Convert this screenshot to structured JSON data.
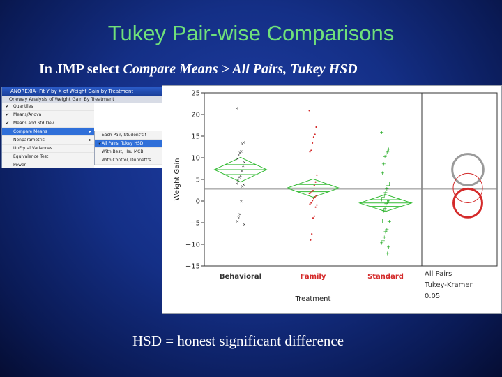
{
  "slide": {
    "title": "Tukey Pair-wise Comparisons",
    "subtitle_prefix": "In JMP select ",
    "subtitle_em": "Compare Means > All Pairs, Tukey HSD",
    "footer": "HSD = honest significant difference"
  },
  "jmp_menu": {
    "window_title": "ANOREXIA- Fit Y by X of Weight Gain by Treatment",
    "report_header": "Oneway Analysis of Weight Gain By Treatment",
    "items": [
      {
        "label": "Quantiles",
        "checked": true
      },
      {
        "label": "Means/Anova",
        "checked": true
      },
      {
        "label": "Means and Std Dev",
        "checked": true
      },
      {
        "label": "Compare Means",
        "checked": false,
        "highlighted": true,
        "has_submenu": true
      },
      {
        "label": "Nonparametric",
        "checked": false,
        "has_submenu": true
      },
      {
        "label": "UnEqual Variances",
        "checked": false
      },
      {
        "label": "Equivalence Test",
        "checked": false
      },
      {
        "label": "Power",
        "checked": false
      }
    ],
    "submenu": [
      {
        "label": "Each Pair, Student's t",
        "checked": false
      },
      {
        "label": "All Pairs, Tukey HSD",
        "checked": true,
        "highlighted": true
      },
      {
        "label": "With Best, Hsu MCB",
        "checked": false
      },
      {
        "label": "With Control, Dunnett's",
        "checked": false
      }
    ],
    "submenu_arrow": "▸"
  },
  "chart_data": {
    "type": "scatter",
    "ylabel": "Weight Gain",
    "xlabel": "Treatment",
    "ylim": [
      -15,
      25
    ],
    "yticks": [
      25,
      20,
      15,
      10,
      5,
      0,
      -5,
      -10,
      -15
    ],
    "ytick_labels": [
      "25",
      "20",
      "15",
      "10",
      "5",
      "0",
      "−5",
      "−10",
      "−15"
    ],
    "grand_mean": 2.76,
    "categories": [
      {
        "name": "Behavioral",
        "color": "#333333",
        "marker": "x",
        "mean": 7.26,
        "ci": [
          4.4,
          10.1
        ],
        "values": [
          21.5,
          13.6,
          13.3,
          11.5,
          11.2,
          10.7,
          9.8,
          9.0,
          8.2,
          7.0,
          6.0,
          5.6,
          4.9,
          4.1,
          3.9,
          3.5,
          0.0,
          -3.0,
          -3.8,
          -4.6,
          -5.3
        ]
      },
      {
        "name": "Family",
        "color": "#d42a2a",
        "marker": "dot",
        "mean": 3.0,
        "ci": [
          0.9,
          5.1
        ],
        "values": [
          20.9,
          17.1,
          15.4,
          14.8,
          13.4,
          11.7,
          11.4,
          6.0,
          4.4,
          3.6,
          2.4,
          2.2,
          1.9,
          1.8,
          1.2,
          0.9,
          0.6,
          0.1,
          -0.4,
          -0.7,
          -0.9,
          -1.4,
          -3.5,
          -3.9,
          -7.6,
          -9.0
        ]
      },
      {
        "name": "Standard",
        "color": "#22aa22",
        "marker": "plus",
        "mean": -0.45,
        "ci": [
          -2.4,
          1.5
        ],
        "values": [
          16.0,
          12.0,
          11.4,
          11.0,
          10.3,
          8.6,
          6.5,
          4.0,
          3.6,
          2.9,
          2.0,
          1.4,
          1.0,
          0.4,
          0.1,
          -0.2,
          -0.6,
          -1.6,
          -2.2,
          -4.5,
          -4.7,
          -5.0,
          -6.5,
          -7.0,
          -8.3,
          -9.1,
          -9.6,
          -10.6,
          -12.0
        ]
      }
    ],
    "label_colors": {
      "Behavioral": "#333333",
      "Family": "#d42a2a",
      "Standard": "#d42a2a"
    },
    "comparison": {
      "labels": [
        "All Pairs",
        "Tukey-Kramer",
        "0.05"
      ],
      "circles": [
        {
          "center": 7.26,
          "radius": 3.6,
          "color": "#9a9a9a",
          "bold": true
        },
        {
          "center": 3.0,
          "radius": 3.4,
          "color": "#d42a2a",
          "bold": false
        },
        {
          "center": -0.45,
          "radius": 3.3,
          "color": "#d42a2a",
          "bold": true
        }
      ]
    }
  }
}
